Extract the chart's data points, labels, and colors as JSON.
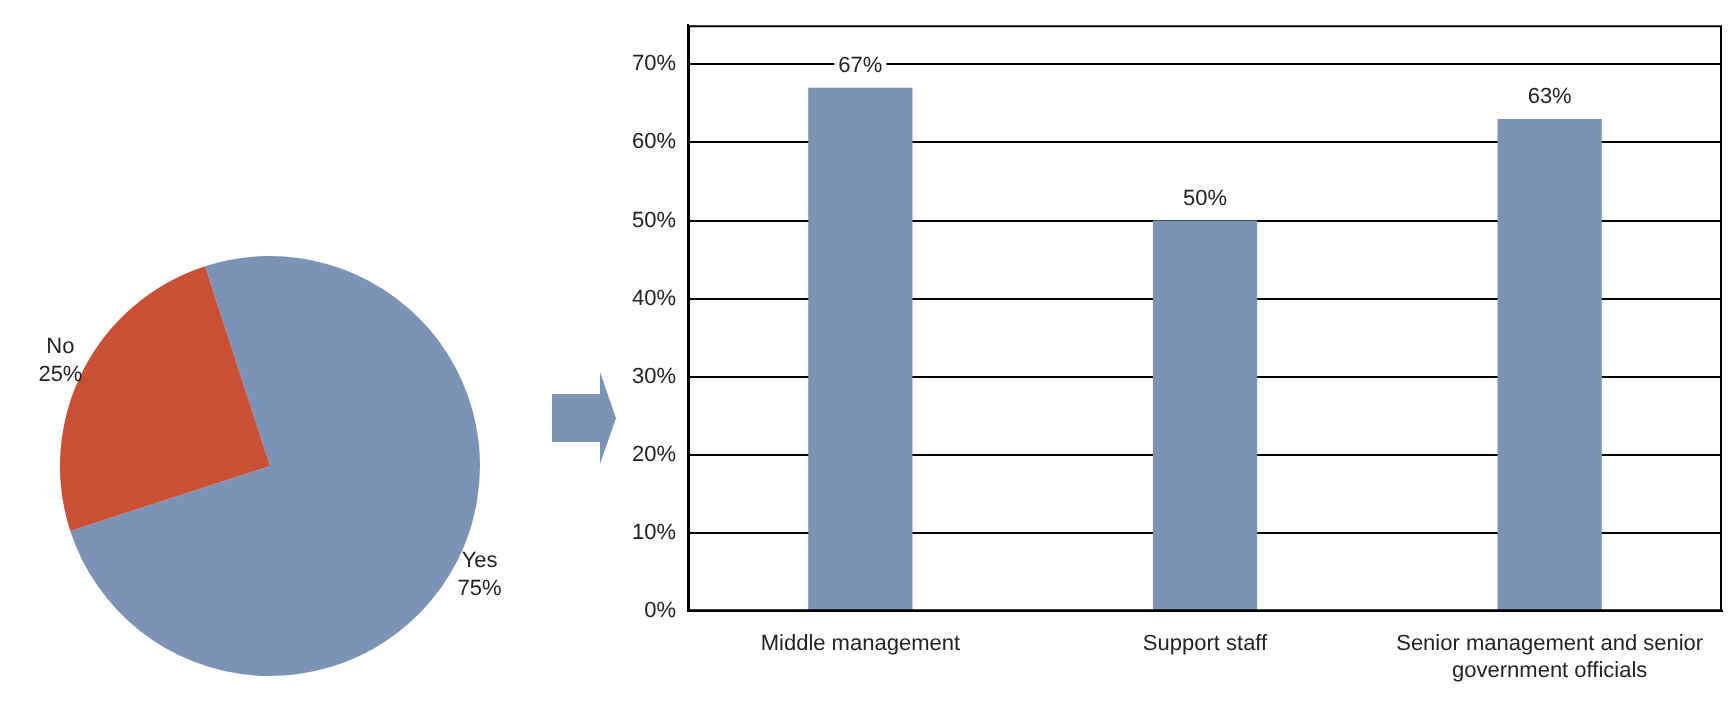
{
  "chart_data": [
    {
      "type": "pie",
      "categories": [
        "Yes",
        "No"
      ],
      "values": [
        75,
        25
      ],
      "colors": [
        "#7b93b6",
        "#c94f35"
      ],
      "value_labels": [
        "75%",
        "25%"
      ]
    },
    {
      "type": "bar",
      "categories": [
        "Middle management",
        "Support staff",
        "Senior management and senior government officials"
      ],
      "values": [
        67,
        50,
        63
      ],
      "color": "#7b93b6",
      "value_labels": [
        "67%",
        "50%",
        "63%"
      ],
      "ylim": [
        0,
        75
      ],
      "yticks": [
        {
          "value": 0,
          "label": "0%"
        },
        {
          "value": 10,
          "label": "10%"
        },
        {
          "value": 20,
          "label": "20%"
        },
        {
          "value": 30,
          "label": "30%"
        },
        {
          "value": 40,
          "label": "40%"
        },
        {
          "value": 50,
          "label": "50%"
        },
        {
          "value": 60,
          "label": "60%"
        },
        {
          "value": 70,
          "label": "70%"
        }
      ],
      "grid": "y"
    }
  ]
}
